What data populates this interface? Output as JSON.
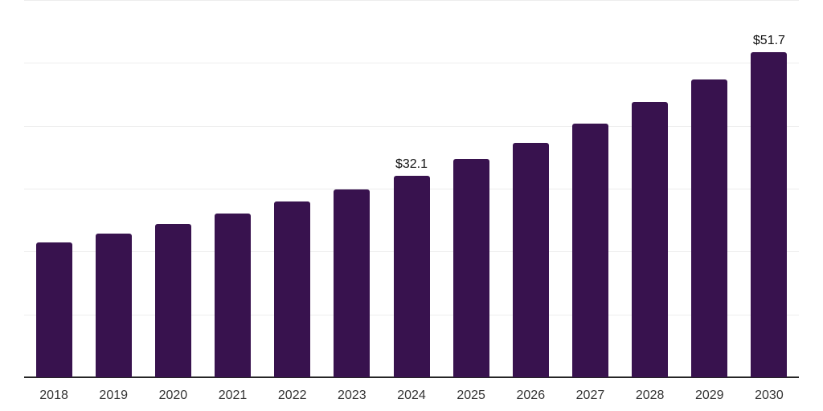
{
  "chart_data": {
    "type": "bar",
    "title": "",
    "xlabel": "",
    "ylabel": "",
    "categories": [
      "2018",
      "2019",
      "2020",
      "2021",
      "2022",
      "2023",
      "2024",
      "2025",
      "2026",
      "2027",
      "2028",
      "2029",
      "2030"
    ],
    "values": [
      21.4,
      22.8,
      24.4,
      26.0,
      27.9,
      29.9,
      32.1,
      34.7,
      37.3,
      40.4,
      43.8,
      47.4,
      51.7
    ],
    "data_labels": [
      {
        "category": "2024",
        "text": "$32.1"
      },
      {
        "category": "2030",
        "text": "$51.7"
      }
    ],
    "ylim": [
      0,
      60
    ],
    "gridline_step": 10,
    "grid": "horizontal-only",
    "legend_position": "none",
    "y_axis_tick_labels_visible": false
  },
  "colors": {
    "bar_fill": "#38124E",
    "gridline": "#EDEDED",
    "axis_line": "#262626",
    "tick_label": "#333333",
    "data_label": "#111111",
    "background": "#FFFFFF"
  }
}
